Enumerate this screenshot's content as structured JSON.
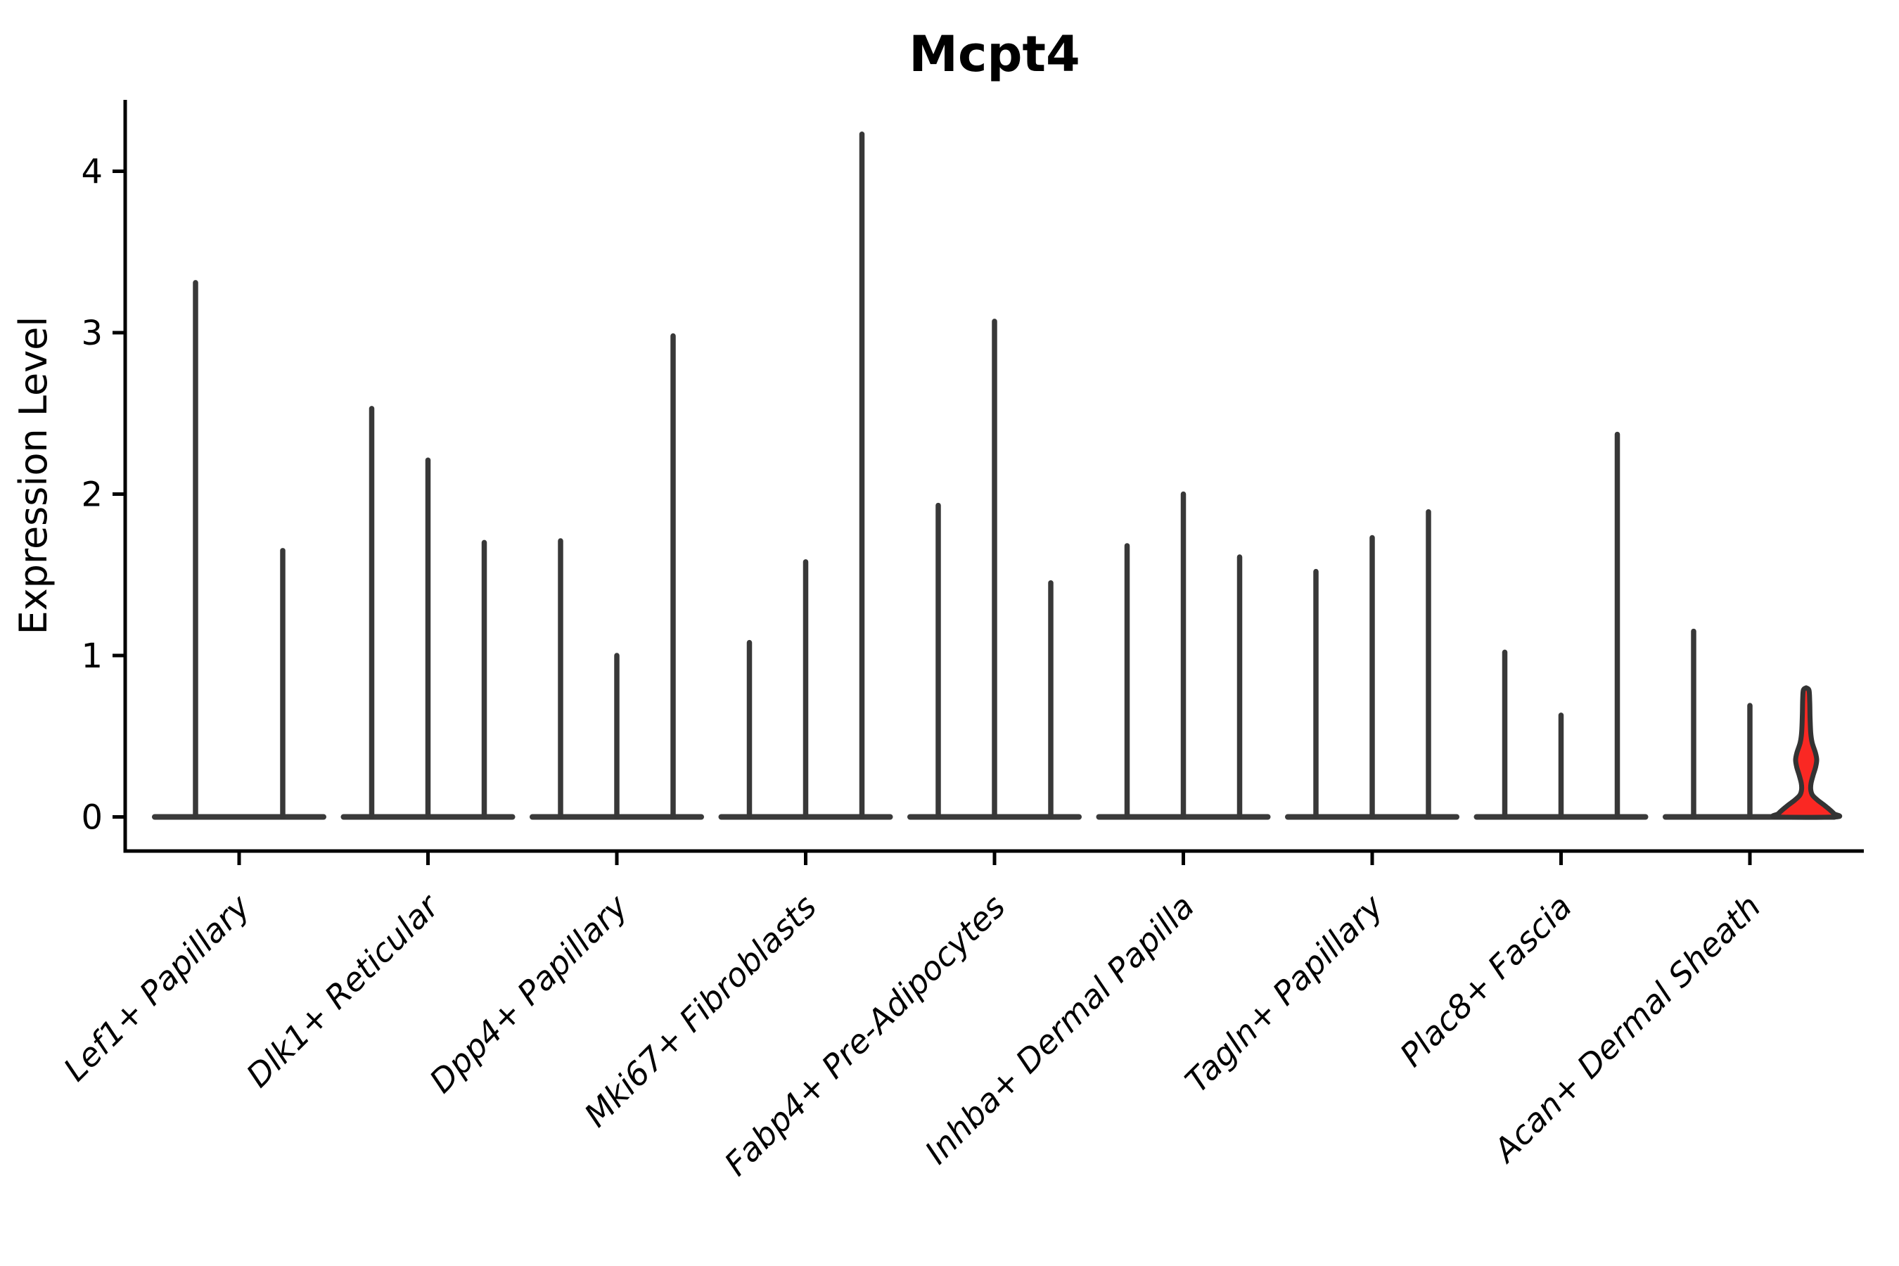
{
  "figure": {
    "title": "Mcpt4",
    "y_axis_label": "Expression Level",
    "colors": {
      "axis": "#000000",
      "spike": "#383838",
      "baseline_bar": "#3a3a3a",
      "highlight_fill": "#fa2823",
      "highlight_stroke": "#333333",
      "text": "#000000"
    }
  },
  "chart_data": {
    "type": "violin",
    "title": "Mcpt4",
    "xlabel": "",
    "ylabel": "Expression Level",
    "ylim": [
      0,
      4.43
    ],
    "yticks": [
      0,
      1,
      2,
      3,
      4
    ],
    "ytick_labels": [
      "0",
      "1",
      "2",
      "3",
      "4"
    ],
    "grid": false,
    "legend": false,
    "categories": [
      "Lef1+ Papillary",
      "Dlk1+ Reticular",
      "Dpp4+ Papillary",
      "Mki67+ Fibroblasts",
      "Fabp4+ Pre-Adipocytes",
      "Inhba+ Dermal Papilla",
      "Tagln+ Papillary",
      "Plac8+ Fascia",
      "Acan+ Dermal Sheath"
    ],
    "description": "Violin plot of Mcpt4 expression per fibroblast subtype; most violins collapse to a zero-width baseline with a thin spike up to the max expressing cell. Only the third violin of Acan+ Dermal Sheath has a visible red-filled density.",
    "groups": [
      {
        "label": "Lef1+ Papillary",
        "violins": [
          {
            "max_expression": 3.31
          },
          {
            "max_expression": 1.65
          }
        ]
      },
      {
        "label": "Dlk1+ Reticular",
        "violins": [
          {
            "max_expression": 2.53
          },
          {
            "max_expression": 2.21
          },
          {
            "max_expression": 1.7
          }
        ]
      },
      {
        "label": "Dpp4+ Papillary",
        "violins": [
          {
            "max_expression": 1.71
          },
          {
            "max_expression": 1.0
          },
          {
            "max_expression": 2.98
          }
        ]
      },
      {
        "label": "Mki67+ Fibroblasts",
        "violins": [
          {
            "max_expression": 1.08
          },
          {
            "max_expression": 1.58
          },
          {
            "max_expression": 4.23
          }
        ]
      },
      {
        "label": "Fabp4+ Pre-Adipocytes",
        "violins": [
          {
            "max_expression": 1.93
          },
          {
            "max_expression": 3.07
          },
          {
            "max_expression": 1.45
          }
        ]
      },
      {
        "label": "Inhba+ Dermal Papilla",
        "violins": [
          {
            "max_expression": 1.68
          },
          {
            "max_expression": 2.0
          },
          {
            "max_expression": 1.61
          }
        ]
      },
      {
        "label": "Tagln+ Papillary",
        "violins": [
          {
            "max_expression": 1.52
          },
          {
            "max_expression": 1.73
          },
          {
            "max_expression": 1.89
          }
        ]
      },
      {
        "label": "Plac8+ Fascia",
        "violins": [
          {
            "max_expression": 1.02
          },
          {
            "max_expression": 0.63
          },
          {
            "max_expression": 2.37
          }
        ]
      },
      {
        "label": "Acan+ Dermal Sheath",
        "violins": [
          {
            "max_expression": 1.15
          },
          {
            "max_expression": 0.69
          },
          {
            "max_expression": 0.8,
            "filled": true
          }
        ]
      }
    ],
    "highlight_violin": {
      "group": "Acan+ Dermal Sheath",
      "violin_index": 2,
      "fill_color": "#fa2823",
      "max_expression": 0.8,
      "profile_value_halfwidth": [
        [
          0.8,
          0.0
        ],
        [
          0.785,
          4.0
        ],
        [
          0.72,
          5.0
        ],
        [
          0.62,
          5.5
        ],
        [
          0.52,
          6.5
        ],
        [
          0.46,
          8.5
        ],
        [
          0.4,
          13.0
        ],
        [
          0.355,
          15.0
        ],
        [
          0.31,
          13.5
        ],
        [
          0.26,
          10.0
        ],
        [
          0.21,
          7.0
        ],
        [
          0.17,
          6.5
        ],
        [
          0.135,
          9.0
        ],
        [
          0.105,
          16.0
        ],
        [
          0.075,
          25.0
        ],
        [
          0.045,
          33.5
        ],
        [
          0.02,
          39.5
        ],
        [
          0.0,
          42.0
        ]
      ]
    }
  }
}
